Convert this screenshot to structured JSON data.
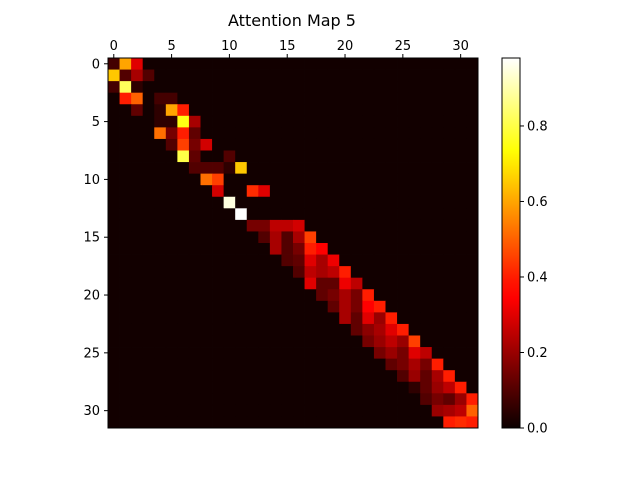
{
  "chart_data": {
    "type": "heatmap",
    "title": "Attention Map 5",
    "xlabel": "",
    "ylabel": "",
    "rows": 32,
    "cols": 32,
    "x_ticks": [
      0,
      5,
      10,
      15,
      20,
      25,
      30
    ],
    "y_ticks": [
      0,
      5,
      10,
      15,
      20,
      25,
      30
    ],
    "x_axis_position": "top",
    "colormap": "hot",
    "colorbar": {
      "min": 0.0,
      "max": 0.98,
      "ticks": [
        0.0,
        0.2,
        0.4,
        0.6,
        0.8
      ],
      "tick_labels": [
        "0.0",
        "0.2",
        "0.4",
        "0.6",
        "0.8"
      ]
    },
    "grid": false,
    "background_value": 0.01,
    "cells": [
      [
        0,
        0,
        0.08
      ],
      [
        0,
        1,
        0.6
      ],
      [
        0,
        2,
        0.3
      ],
      [
        1,
        0,
        0.65
      ],
      [
        1,
        1,
        0.1
      ],
      [
        1,
        2,
        0.22
      ],
      [
        1,
        3,
        0.1
      ],
      [
        2,
        0,
        0.08
      ],
      [
        2,
        1,
        0.82
      ],
      [
        2,
        2,
        0.05
      ],
      [
        3,
        1,
        0.4
      ],
      [
        3,
        2,
        0.5
      ],
      [
        3,
        4,
        0.08
      ],
      [
        3,
        5,
        0.08
      ],
      [
        4,
        2,
        0.12
      ],
      [
        4,
        4,
        0.05
      ],
      [
        4,
        5,
        0.6
      ],
      [
        4,
        6,
        0.4
      ],
      [
        5,
        4,
        0.05
      ],
      [
        5,
        5,
        0.05
      ],
      [
        5,
        6,
        0.75
      ],
      [
        5,
        7,
        0.22
      ],
      [
        6,
        4,
        0.52
      ],
      [
        6,
        5,
        0.15
      ],
      [
        6,
        6,
        0.4
      ],
      [
        6,
        7,
        0.12
      ],
      [
        7,
        5,
        0.1
      ],
      [
        7,
        6,
        0.45
      ],
      [
        7,
        7,
        0.15
      ],
      [
        7,
        8,
        0.28
      ],
      [
        8,
        6,
        0.8
      ],
      [
        8,
        7,
        0.12
      ],
      [
        8,
        10,
        0.1
      ],
      [
        9,
        7,
        0.1
      ],
      [
        9,
        8,
        0.1
      ],
      [
        9,
        9,
        0.1
      ],
      [
        9,
        10,
        0.05
      ],
      [
        9,
        11,
        0.65
      ],
      [
        10,
        8,
        0.52
      ],
      [
        10,
        9,
        0.45
      ],
      [
        11,
        9,
        0.28
      ],
      [
        11,
        12,
        0.42
      ],
      [
        11,
        13,
        0.3
      ],
      [
        12,
        10,
        0.95
      ],
      [
        13,
        11,
        0.98
      ],
      [
        14,
        12,
        0.15
      ],
      [
        14,
        13,
        0.15
      ],
      [
        14,
        14,
        0.25
      ],
      [
        14,
        15,
        0.25
      ],
      [
        14,
        16,
        0.28
      ],
      [
        15,
        13,
        0.1
      ],
      [
        15,
        14,
        0.22
      ],
      [
        15,
        15,
        0.1
      ],
      [
        15,
        16,
        0.22
      ],
      [
        15,
        17,
        0.45
      ],
      [
        16,
        14,
        0.22
      ],
      [
        16,
        15,
        0.1
      ],
      [
        16,
        16,
        0.15
      ],
      [
        16,
        17,
        0.4
      ],
      [
        16,
        18,
        0.35
      ],
      [
        17,
        15,
        0.1
      ],
      [
        17,
        16,
        0.12
      ],
      [
        17,
        17,
        0.3
      ],
      [
        17,
        18,
        0.22
      ],
      [
        17,
        19,
        0.32
      ],
      [
        18,
        16,
        0.1
      ],
      [
        18,
        17,
        0.25
      ],
      [
        18,
        18,
        0.22
      ],
      [
        18,
        19,
        0.25
      ],
      [
        18,
        20,
        0.4
      ],
      [
        19,
        17,
        0.3
      ],
      [
        19,
        18,
        0.12
      ],
      [
        19,
        19,
        0.12
      ],
      [
        19,
        20,
        0.32
      ],
      [
        19,
        21,
        0.25
      ],
      [
        20,
        18,
        0.12
      ],
      [
        20,
        19,
        0.15
      ],
      [
        20,
        20,
        0.22
      ],
      [
        20,
        21,
        0.15
      ],
      [
        20,
        22,
        0.4
      ],
      [
        21,
        19,
        0.12
      ],
      [
        21,
        20,
        0.22
      ],
      [
        21,
        21,
        0.15
      ],
      [
        21,
        22,
        0.35
      ],
      [
        21,
        23,
        0.4
      ],
      [
        22,
        20,
        0.22
      ],
      [
        22,
        21,
        0.12
      ],
      [
        22,
        22,
        0.3
      ],
      [
        22,
        23,
        0.2
      ],
      [
        22,
        24,
        0.4
      ],
      [
        23,
        21,
        0.12
      ],
      [
        23,
        22,
        0.18
      ],
      [
        23,
        23,
        0.22
      ],
      [
        23,
        24,
        0.3
      ],
      [
        23,
        25,
        0.4
      ],
      [
        24,
        22,
        0.15
      ],
      [
        24,
        23,
        0.2
      ],
      [
        24,
        24,
        0.25
      ],
      [
        24,
        25,
        0.2
      ],
      [
        24,
        26,
        0.45
      ],
      [
        25,
        23,
        0.15
      ],
      [
        25,
        24,
        0.2
      ],
      [
        25,
        25,
        0.15
      ],
      [
        25,
        26,
        0.3
      ],
      [
        25,
        27,
        0.25
      ],
      [
        26,
        24,
        0.12
      ],
      [
        26,
        25,
        0.15
      ],
      [
        26,
        26,
        0.22
      ],
      [
        26,
        27,
        0.15
      ],
      [
        26,
        28,
        0.4
      ],
      [
        27,
        25,
        0.1
      ],
      [
        27,
        26,
        0.2
      ],
      [
        27,
        27,
        0.12
      ],
      [
        27,
        28,
        0.22
      ],
      [
        27,
        29,
        0.4
      ],
      [
        28,
        26,
        0.05
      ],
      [
        28,
        27,
        0.12
      ],
      [
        28,
        28,
        0.2
      ],
      [
        28,
        29,
        0.25
      ],
      [
        28,
        30,
        0.4
      ],
      [
        29,
        27,
        0.1
      ],
      [
        29,
        28,
        0.15
      ],
      [
        29,
        29,
        0.12
      ],
      [
        29,
        30,
        0.2
      ],
      [
        29,
        31,
        0.4
      ],
      [
        30,
        28,
        0.2
      ],
      [
        30,
        29,
        0.22
      ],
      [
        30,
        30,
        0.25
      ],
      [
        30,
        31,
        0.5
      ],
      [
        31,
        29,
        0.4
      ],
      [
        31,
        30,
        0.42
      ],
      [
        31,
        31,
        0.4
      ]
    ]
  }
}
